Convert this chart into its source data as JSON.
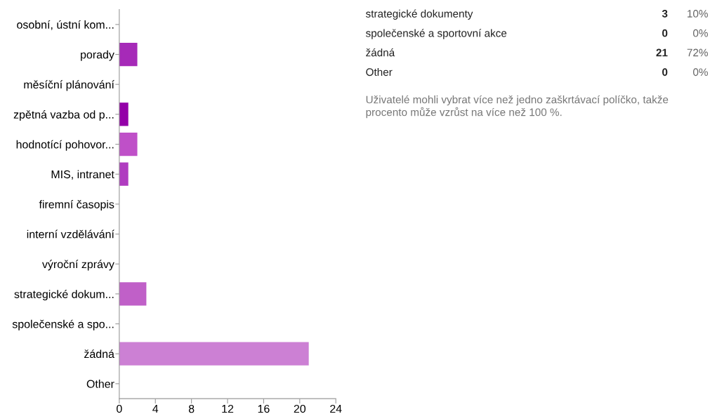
{
  "chart_data": [
    {
      "type": "bar",
      "orientation": "horizontal",
      "categories": [
        "osobní, ústní kom...",
        "porady",
        "měsíční plánování",
        "zpětná vazba od p...",
        "hodnotící pohovor...",
        "MIS, intranet",
        "firemní časopis",
        "interní vzdělávání",
        "výroční zprávy",
        "strategické dokum...",
        "společenské a spo...",
        "žádná",
        "Other"
      ],
      "values": [
        0,
        2,
        0,
        1,
        2,
        1,
        0,
        0,
        0,
        3,
        0,
        21,
        0
      ],
      "colors": [
        "#a020b0",
        "#a62ab8",
        "#a020b0",
        "#9400a8",
        "#bf50c8",
        "#b03cc0",
        "#a020b0",
        "#a020b0",
        "#a020b0",
        "#c060c8",
        "#a020b0",
        "#cc80d4",
        "#a020b0"
      ],
      "xlim": [
        0,
        24
      ],
      "xticks": [
        0,
        4,
        8,
        12,
        16,
        20,
        24
      ],
      "grid": false
    },
    {
      "type": "other",
      "categories": [
        "strategické dokumenty",
        "společenské a sportovní akce",
        "žádná",
        "Other"
      ],
      "values": [
        3,
        0,
        21,
        0
      ],
      "data_labels": true,
      "annotations": [
        "10%",
        "0%",
        "72%",
        "0%",
        "Uživatelé mohli vybrat více než jedno zaškrtávací políčko, takže procento může vzrůst na více než 100 %."
      ]
    }
  ]
}
